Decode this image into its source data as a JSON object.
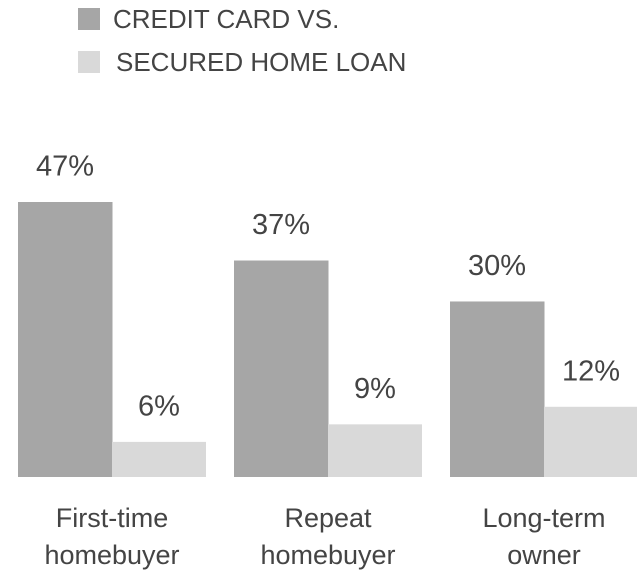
{
  "chart_data": {
    "type": "bar",
    "categories": [
      "First-time homebuyer",
      "Repeat homebuyer",
      "Long-term owner"
    ],
    "series": [
      {
        "name": "CREDIT CARD VS.",
        "color": "#a6a6a6",
        "values": [
          47,
          37,
          30
        ],
        "value_labels": [
          "47%",
          "37%",
          "30%"
        ]
      },
      {
        "name": "SECURED HOME LOAN",
        "color": "#d9d9d9",
        "values": [
          6,
          9,
          12
        ],
        "value_labels": [
          "6%",
          "9%",
          "12%"
        ]
      }
    ],
    "legend": "top-left"
  }
}
